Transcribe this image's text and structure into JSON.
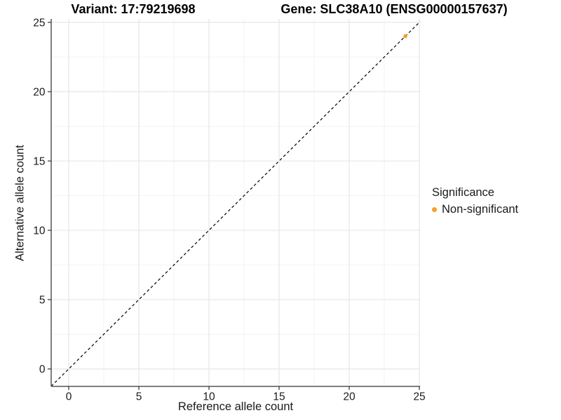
{
  "titles": {
    "variant": "Variant: 17:79219698",
    "gene": "Gene: SLC38A10 (ENSG00000157637)"
  },
  "chart_data": {
    "type": "scatter",
    "title": "Variant: 17:79219698  /  Gene: SLC38A10 (ENSG00000157637)",
    "xlabel": "Reference allele count",
    "ylabel": "Alternative allele count",
    "x_ticks": [
      0,
      5,
      10,
      15,
      20,
      25
    ],
    "y_ticks": [
      0,
      5,
      10,
      15,
      20,
      25
    ],
    "x_minor_ticks": [
      2.5,
      7.5,
      12.5,
      17.5,
      22.5
    ],
    "y_minor_ticks": [
      2.5,
      7.5,
      12.5,
      17.5,
      22.5
    ],
    "x_range": [
      -1.25,
      25.05
    ],
    "y_range": [
      -1.26,
      25.25
    ],
    "grid": true,
    "legend_position": "right",
    "points": [
      {
        "x": 24,
        "y": 24,
        "series": "Non-significant"
      }
    ],
    "reference_line": {
      "type": "abline",
      "slope": 1,
      "intercept": 0,
      "style": "dashed",
      "color": "#000000"
    }
  },
  "legend": {
    "title": "Significance",
    "items": [
      {
        "label": "Non-significant",
        "color": "#F8A029"
      }
    ]
  },
  "colors": {
    "point": "#F8A029",
    "grid_major": "#E4E4E4",
    "grid_minor": "#F0F0F0",
    "axis_line": "#555555",
    "tick": "#333333",
    "text": "#1A1A1A",
    "background": "#FFFFFF"
  }
}
